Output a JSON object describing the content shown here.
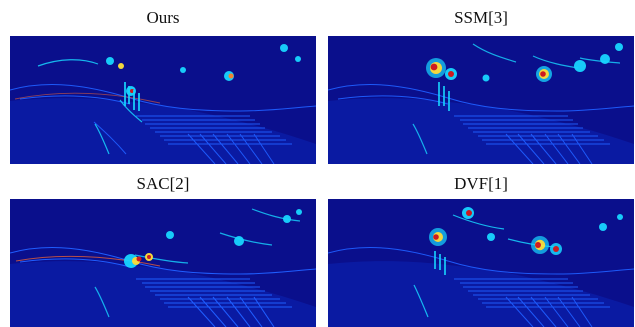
{
  "figure": {
    "panels": [
      {
        "label": "Ours",
        "variant": "ours"
      },
      {
        "label": "SSM[3]",
        "variant": "ssm"
      },
      {
        "label": "SAC[2]",
        "variant": "sac"
      },
      {
        "label": "DVF[1]",
        "variant": "dvf"
      }
    ],
    "colormap": {
      "background": "#0a0f8c",
      "low": "#1f5dff",
      "mid": "#18d6ff",
      "high": "#ffe23a",
      "peak": "#d81b1b"
    }
  }
}
